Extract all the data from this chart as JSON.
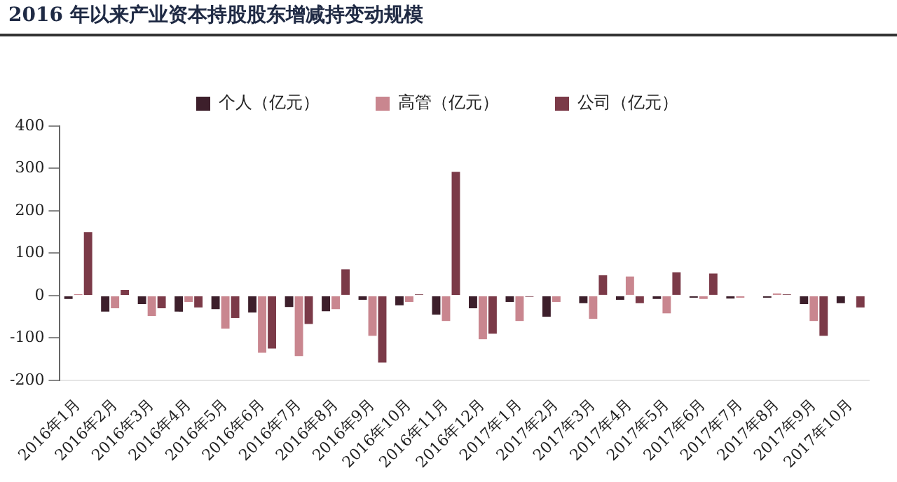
{
  "chart_data": {
    "type": "bar",
    "title": "2016 年以来产业资本持股股东增减持变动规模",
    "categories": [
      "2016年1月",
      "2016年2月",
      "2016年3月",
      "2016年4月",
      "2016年5月",
      "2016年6月",
      "2016年7月",
      "2016年8月",
      "2016年9月",
      "2016年10月",
      "2016年11月",
      "2016年12月",
      "2017年1月",
      "2017年2月",
      "2017年3月",
      "2017年4月",
      "2017年5月",
      "2017年6月",
      "2017年7月",
      "2017年8月",
      "2017年9月",
      "2017年10月"
    ],
    "series": [
      {
        "name": "个人（亿元）",
        "color": "#3d1f2b",
        "values": [
          -8,
          -38,
          -20,
          -38,
          -32,
          -40,
          -27,
          -37,
          -10,
          -23,
          -45,
          -30,
          -15,
          -50,
          -18,
          -10,
          -8,
          -5,
          -7,
          -5,
          -20,
          -18
        ]
      },
      {
        "name": "高管（亿元）",
        "color": "#c9868f",
        "values": [
          3,
          -30,
          -48,
          -15,
          -78,
          -135,
          -143,
          -32,
          -95,
          -15,
          -60,
          -103,
          -60,
          -15,
          -55,
          45,
          -42,
          -8,
          -5,
          5,
          -60,
          0
        ]
      },
      {
        "name": "公司（亿元）",
        "color": "#7b3a48",
        "values": [
          150,
          13,
          -30,
          -28,
          -53,
          -125,
          -67,
          62,
          -158,
          3,
          292,
          -90,
          -3,
          0,
          48,
          -18,
          55,
          52,
          0,
          3,
          -95,
          -28
        ]
      }
    ],
    "ylim": [
      -200,
      400
    ],
    "yticks": [
      -200,
      -100,
      0,
      100,
      200,
      300,
      400
    ],
    "grid": false,
    "legend": "top"
  }
}
